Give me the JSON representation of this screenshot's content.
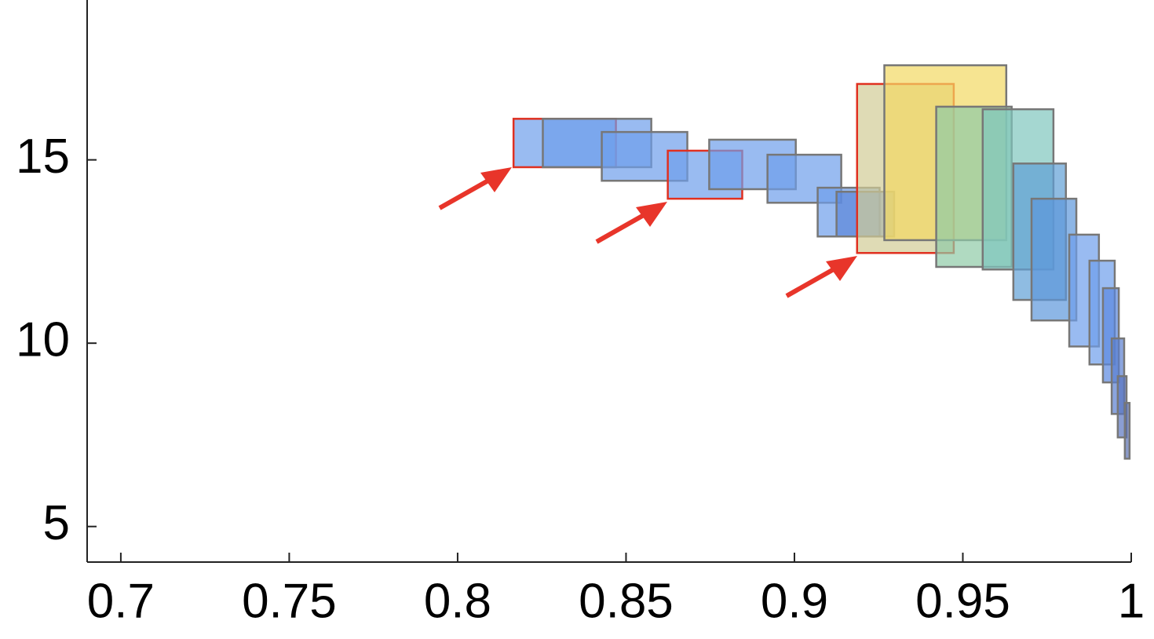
{
  "chart_data": {
    "type": "rect",
    "xlim": [
      0.69,
      1.0
    ],
    "ylim": [
      4.03,
      19.36
    ],
    "xticks": [
      0.7,
      0.75,
      0.8,
      0.85,
      0.9,
      0.95,
      1
    ],
    "yticks": [
      5,
      10,
      15
    ],
    "alpha": 0.7,
    "boxes": [
      {
        "x": [
          0.8166,
          0.847
        ],
        "y": [
          14.8,
          16.12
        ],
        "color": "#6d9eeb",
        "edgecolor": "#e03020"
      },
      {
        "x": [
          0.8253,
          0.8575
        ],
        "y": [
          14.8,
          16.12
        ],
        "color": "#6d9eeb",
        "edgecolor": "#777777"
      },
      {
        "x": [
          0.8428,
          0.8682
        ],
        "y": [
          14.43,
          15.76
        ],
        "color": "#6d9eeb",
        "edgecolor": "#777777"
      },
      {
        "x": [
          0.8624,
          0.8845
        ],
        "y": [
          13.94,
          15.25
        ],
        "color": "#6d9eeb",
        "edgecolor": "#e03020"
      },
      {
        "x": [
          0.8747,
          0.9004
        ],
        "y": [
          14.2,
          15.55
        ],
        "color": "#6d9eeb",
        "edgecolor": "#777777"
      },
      {
        "x": [
          0.892,
          0.9139
        ],
        "y": [
          13.83,
          15.14
        ],
        "color": "#6d9eeb",
        "edgecolor": "#777777"
      },
      {
        "x": [
          0.9069,
          0.9253
        ],
        "y": [
          12.91,
          14.24
        ],
        "color": "#6d9eeb",
        "edgecolor": "#777777"
      },
      {
        "x": [
          0.9125,
          0.9296
        ],
        "y": [
          12.91,
          14.13
        ],
        "color": "#5b86d8",
        "edgecolor": "#777777"
      },
      {
        "x": [
          0.9186,
          0.9473
        ],
        "y": [
          12.46,
          17.07
        ],
        "color": "#d2cc95",
        "edgecolor": "#e03020"
      },
      {
        "x": [
          0.9267,
          0.9629
        ],
        "y": [
          12.81,
          17.58
        ],
        "color": "#f2d862",
        "edgecolor": "#777777"
      },
      {
        "x": [
          0.9421,
          0.9645
        ],
        "y": [
          12.08,
          16.45
        ],
        "color": "#8fcba6",
        "edgecolor": "#777777"
      },
      {
        "x": [
          0.9559,
          0.9769
        ],
        "y": [
          12.01,
          16.38
        ],
        "color": "#7fc6bd",
        "edgecolor": "#777777"
      },
      {
        "x": [
          0.965,
          0.9806
        ],
        "y": [
          11.18,
          14.9
        ],
        "color": "#5f9fd6",
        "edgecolor": "#777777"
      },
      {
        "x": [
          0.9704,
          0.9837
        ],
        "y": [
          10.62,
          13.94
        ],
        "color": "#5c97dc",
        "edgecolor": "#777777"
      },
      {
        "x": [
          0.9816,
          0.9904
        ],
        "y": [
          9.91,
          12.96
        ],
        "color": "#6d9eeb",
        "edgecolor": "#777777"
      },
      {
        "x": [
          0.9876,
          0.9951
        ],
        "y": [
          9.42,
          12.25
        ],
        "color": "#6d9eeb",
        "edgecolor": "#777777"
      },
      {
        "x": [
          0.9916,
          0.9963
        ],
        "y": [
          8.93,
          11.5
        ],
        "color": "#5a88e0",
        "edgecolor": "#777777"
      },
      {
        "x": [
          0.9942,
          0.9979
        ],
        "y": [
          8.07,
          10.13
        ],
        "color": "#5a7fd0",
        "edgecolor": "#777777"
      },
      {
        "x": [
          0.996,
          0.9986
        ],
        "y": [
          7.43,
          9.1
        ],
        "color": "#5a75c0",
        "edgecolor": "#777777"
      },
      {
        "x": [
          0.9981,
          0.9995
        ],
        "y": [
          6.85,
          8.37
        ],
        "color": "#5a6fb0",
        "edgecolor": "#777777"
      }
    ]
  }
}
